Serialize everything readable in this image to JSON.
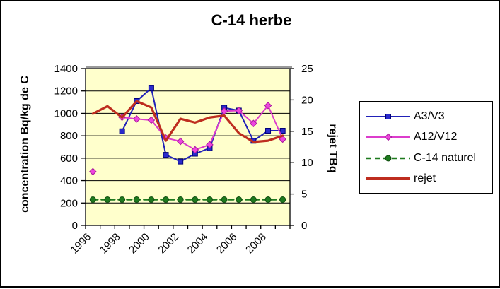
{
  "frame": {
    "background": "#FFFFFF",
    "border_color": "#000000"
  },
  "chart_data": {
    "type": "line",
    "title": "C-14 herbe",
    "ylabel_left": "concentration Bq/kg de C",
    "ylabel_right": "rejet TBq",
    "plot_bg": "#FFFFCC",
    "grid": true,
    "legend_position": "right",
    "x_categories": [
      1996,
      1997,
      1998,
      1999,
      2000,
      2001,
      2002,
      2003,
      2004,
      2005,
      2006,
      2007,
      2008,
      2009
    ],
    "x_tick_labels": [
      "1996",
      "1998",
      "2000",
      "2002",
      "2004",
      "2006",
      "2008"
    ],
    "x_labeled_category_indices": [
      0,
      2,
      4,
      6,
      8,
      10,
      12
    ],
    "ylim_left": [
      0,
      1400
    ],
    "yticks_left": [
      "0",
      "200",
      "400",
      "600",
      "800",
      "1000",
      "1200",
      "1400"
    ],
    "ytick_step_left": 200,
    "ylim_right": [
      0,
      25
    ],
    "yticks_right": [
      "0",
      "5",
      "10",
      "15",
      "20",
      "25"
    ],
    "ytick_step_right": 5,
    "series": [
      {
        "name": "A3/V3",
        "axis": "left",
        "marker": "square",
        "color": "#2121B8",
        "marker_fill": "#2A2ACC",
        "marker_stroke": "#000078",
        "line_width": 2,
        "dashed": false,
        "values": [
          null,
          null,
          840,
          1110,
          1225,
          630,
          570,
          640,
          690,
          1050,
          1025,
          755,
          845,
          845
        ]
      },
      {
        "name": "A12/V12",
        "axis": "left",
        "marker": "diamond",
        "color": "#DC3CCC",
        "marker_fill": "#EE46DE",
        "marker_stroke": "#A8189C",
        "line_width": 2,
        "dashed": false,
        "values": [
          480,
          null,
          965,
          950,
          940,
          780,
          750,
          675,
          720,
          1020,
          1025,
          910,
          1070,
          770
        ]
      },
      {
        "name": "C-14 naturel",
        "axis": "left",
        "marker": "circle",
        "color": "#1E7A1E",
        "marker_fill": "#1E7A1E",
        "marker_stroke": "#0F4D0F",
        "line_width": 2.4,
        "dashed": true,
        "values": [
          230,
          230,
          230,
          230,
          230,
          230,
          230,
          230,
          230,
          230,
          230,
          230,
          230,
          230
        ]
      },
      {
        "name": "rejet",
        "axis": "right",
        "marker": "none",
        "color": "#BE2D1F",
        "marker_fill": "#BE2D1F",
        "marker_stroke": "#8E1D12",
        "line_width": 3.2,
        "dashed": false,
        "values": [
          17.8,
          19.0,
          17.2,
          19.8,
          18.8,
          13.5,
          17.0,
          16.4,
          17.2,
          17.5,
          14.7,
          13.3,
          13.5,
          14.3
        ]
      }
    ]
  }
}
